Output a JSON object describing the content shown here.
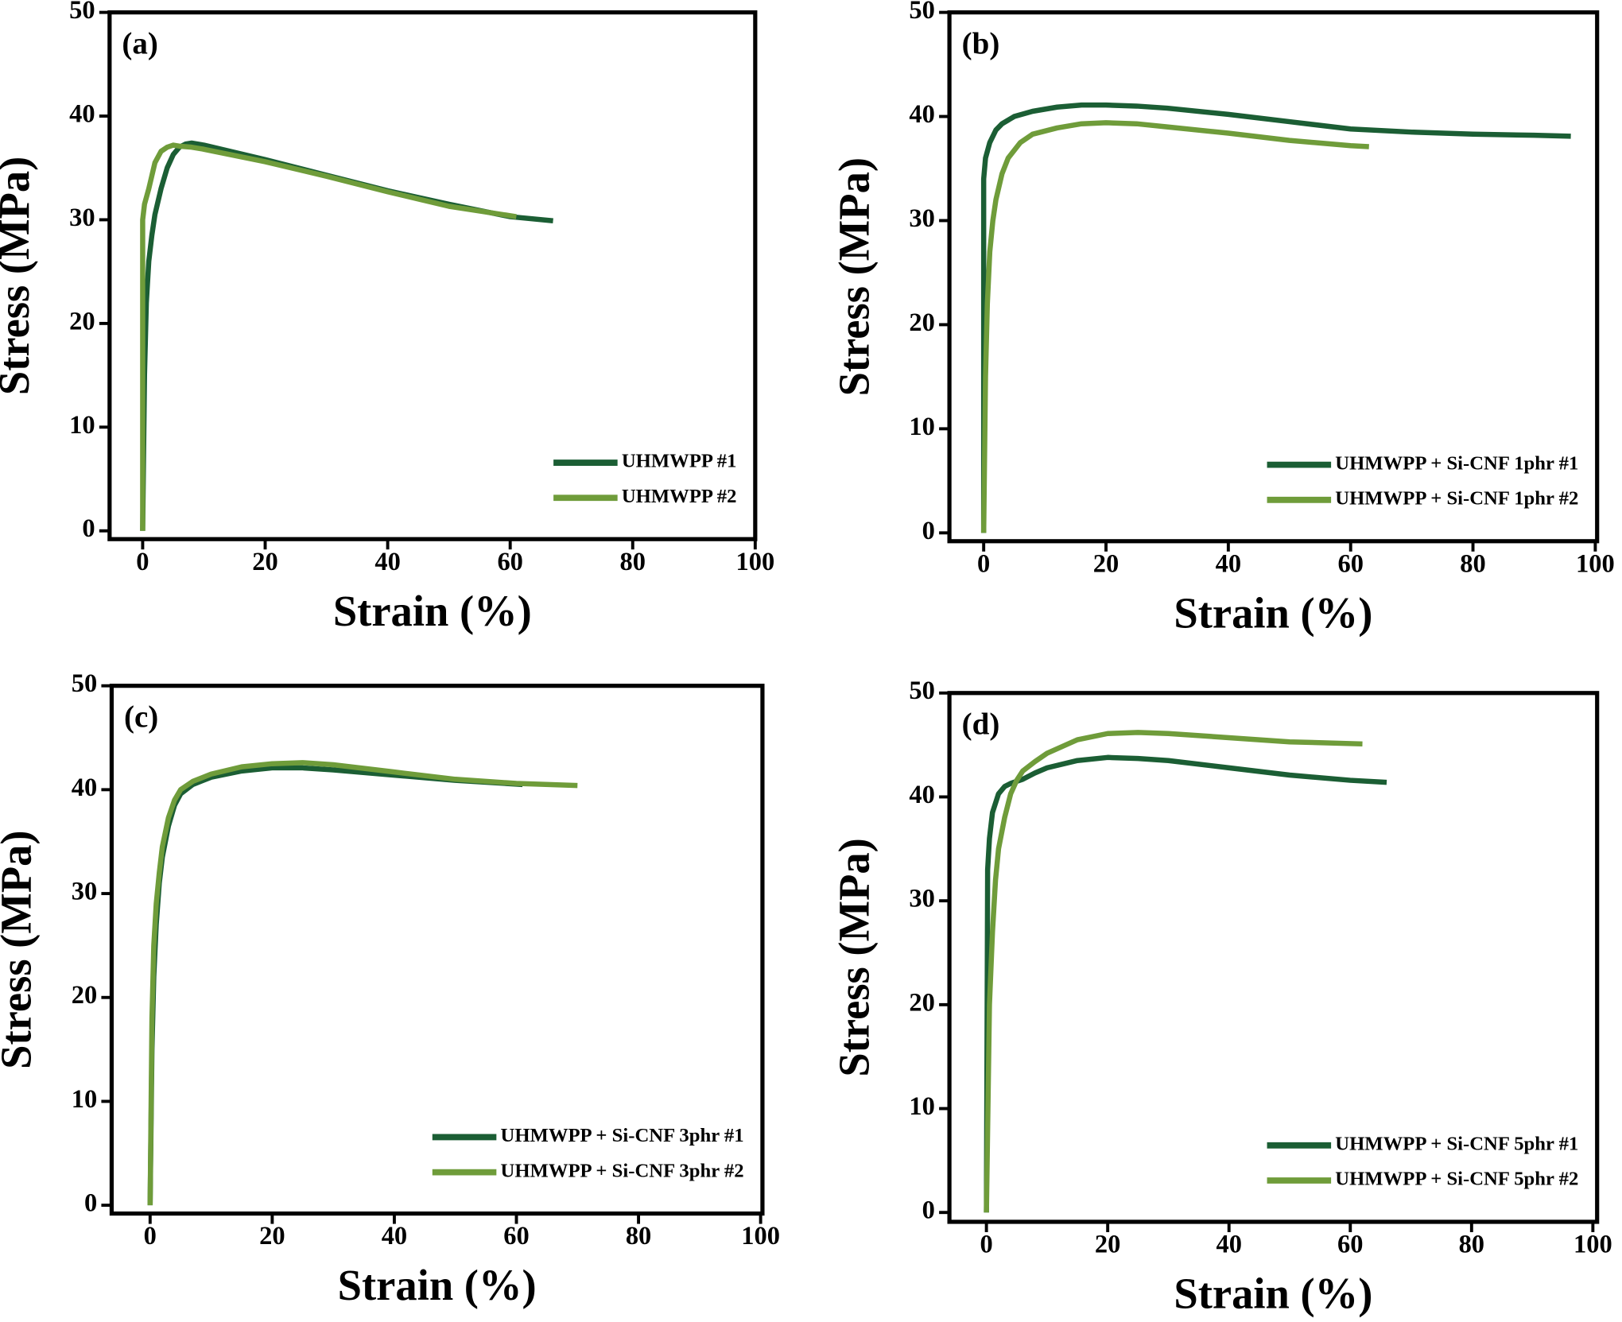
{
  "chart_data": [
    {
      "type": "line",
      "label": "(a)",
      "x_label": "Strain (%)",
      "y_label": "Stress (MPa)",
      "xlim": [
        -5.4,
        100
      ],
      "ylim": [
        -0.8,
        50
      ],
      "xticks": [
        0,
        20,
        40,
        60,
        80,
        100
      ],
      "yticks": [
        0,
        10,
        20,
        30,
        40,
        50
      ],
      "legend": "lower right",
      "series": [
        {
          "name": "UHMWPP #1",
          "color": "#1b5e34",
          "x": [
            0,
            0.3,
            0.6,
            1,
            1.5,
            2,
            3,
            4,
            5,
            6,
            7,
            8,
            10,
            15,
            20,
            30,
            40,
            50,
            60,
            67
          ],
          "values": [
            0,
            15,
            22,
            26,
            28.5,
            30.5,
            33,
            35,
            36.3,
            37,
            37.3,
            37.4,
            37.2,
            36.5,
            35.8,
            34.3,
            32.8,
            31.5,
            30.3,
            29.9
          ]
        },
        {
          "name": "UHMWPP #2",
          "color": "#6f9c3a",
          "x": [
            0,
            0,
            0.3,
            1,
            2,
            3,
            4,
            5,
            6,
            8,
            10,
            20,
            30,
            40,
            50,
            61
          ],
          "values": [
            0,
            30,
            31.5,
            33,
            35.5,
            36.6,
            37,
            37.2,
            37.1,
            37,
            36.8,
            35.6,
            34.2,
            32.7,
            31.3,
            30.3
          ]
        }
      ]
    },
    {
      "type": "line",
      "label": "(b)",
      "x_label": "Strain (%)",
      "y_label": "Stress (MPa)",
      "xlim": [
        -5.6,
        100.3
      ],
      "ylim": [
        -0.8,
        50
      ],
      "xticks": [
        0,
        20,
        40,
        60,
        80,
        100
      ],
      "yticks": [
        0,
        10,
        20,
        30,
        40,
        50
      ],
      "legend": "lower right",
      "series": [
        {
          "name": "UHMWPP + Si-CNF 1phr #1",
          "color": "#1b5e34",
          "x": [
            0,
            0,
            0.3,
            1,
            2,
            3,
            5,
            8,
            12,
            16,
            20,
            25,
            30,
            40,
            50,
            60,
            70,
            80,
            90,
            96
          ],
          "values": [
            0,
            34,
            36,
            37.5,
            38.7,
            39.3,
            40,
            40.5,
            40.9,
            41.1,
            41.1,
            41,
            40.8,
            40.2,
            39.5,
            38.8,
            38.5,
            38.3,
            38.2,
            38.1
          ]
        },
        {
          "name": "UHMWPP + Si-CNF 1phr #2",
          "color": "#6f9c3a",
          "x": [
            0,
            0.3,
            0.6,
            1,
            1.5,
            2,
            3,
            4,
            6,
            8,
            12,
            16,
            20,
            25,
            30,
            40,
            50,
            60,
            63
          ],
          "values": [
            0,
            15,
            22,
            27,
            30,
            32,
            34.5,
            36,
            37.5,
            38.3,
            38.9,
            39.3,
            39.4,
            39.3,
            39,
            38.4,
            37.7,
            37.2,
            37.1
          ]
        }
      ]
    },
    {
      "type": "line",
      "label": "(c)",
      "x_label": "Strain (%)",
      "y_label": "Stress (MPa)",
      "xlim": [
        -6.3,
        100.3
      ],
      "ylim": [
        -0.8,
        50
      ],
      "xticks": [
        0,
        20,
        40,
        60,
        80,
        100
      ],
      "yticks": [
        0,
        10,
        20,
        30,
        40,
        50
      ],
      "legend": "lower right",
      "series": [
        {
          "name": "UHMWPP + Si-CNF 3phr #1",
          "color": "#1b5e34",
          "x": [
            0,
            0.3,
            0.6,
            1,
            1.5,
            2,
            3,
            4,
            5,
            7,
            10,
            15,
            20,
            25,
            30,
            40,
            50,
            61
          ],
          "values": [
            0,
            15,
            22,
            27,
            31,
            33.5,
            36.5,
            38.5,
            39.6,
            40.5,
            41.2,
            41.8,
            42.1,
            42.1,
            41.9,
            41.4,
            40.9,
            40.5
          ]
        },
        {
          "name": "UHMWPP + Si-CNF 3phr #2",
          "color": "#6f9c3a",
          "x": [
            0,
            0.3,
            0.6,
            1,
            1.5,
            2,
            3,
            4,
            5,
            7,
            10,
            15,
            20,
            25,
            30,
            40,
            50,
            60,
            70
          ],
          "values": [
            0,
            18,
            25,
            29,
            32,
            34.5,
            37.3,
            39,
            40,
            40.8,
            41.5,
            42.2,
            42.5,
            42.6,
            42.4,
            41.7,
            41,
            40.6,
            40.4
          ]
        }
      ]
    },
    {
      "type": "line",
      "label": "(d)",
      "x_label": "Strain (%)",
      "y_label": "Stress (MPa)",
      "xlim": [
        -6.1,
        100.7
      ],
      "ylim": [
        -0.9,
        50
      ],
      "xticks": [
        0,
        20,
        40,
        60,
        80,
        100
      ],
      "yticks": [
        0,
        10,
        20,
        30,
        40,
        50
      ],
      "legend": "lower right",
      "series": [
        {
          "name": "UHMWPP + Si-CNF 5phr #1",
          "color": "#1b5e34",
          "x": [
            0,
            0.2,
            0.5,
            1,
            2,
            3,
            4,
            6,
            8,
            10,
            15,
            20,
            25,
            30,
            40,
            50,
            60,
            66
          ],
          "values": [
            0,
            33,
            36,
            38.5,
            40.3,
            41,
            41.3,
            41.7,
            42.3,
            42.8,
            43.5,
            43.8,
            43.7,
            43.5,
            42.8,
            42.1,
            41.6,
            41.4
          ]
        },
        {
          "name": "UHMWPP + Si-CNF 5phr #2",
          "color": "#6f9c3a",
          "x": [
            0,
            0.5,
            1,
            1.5,
            2,
            3,
            4,
            5,
            6,
            8,
            10,
            15,
            20,
            25,
            30,
            40,
            50,
            62
          ],
          "values": [
            0,
            20,
            27,
            32,
            35,
            38,
            40.3,
            41.6,
            42.5,
            43.4,
            44.2,
            45.5,
            46.1,
            46.2,
            46.1,
            45.7,
            45.3,
            45.1
          ]
        }
      ]
    }
  ]
}
